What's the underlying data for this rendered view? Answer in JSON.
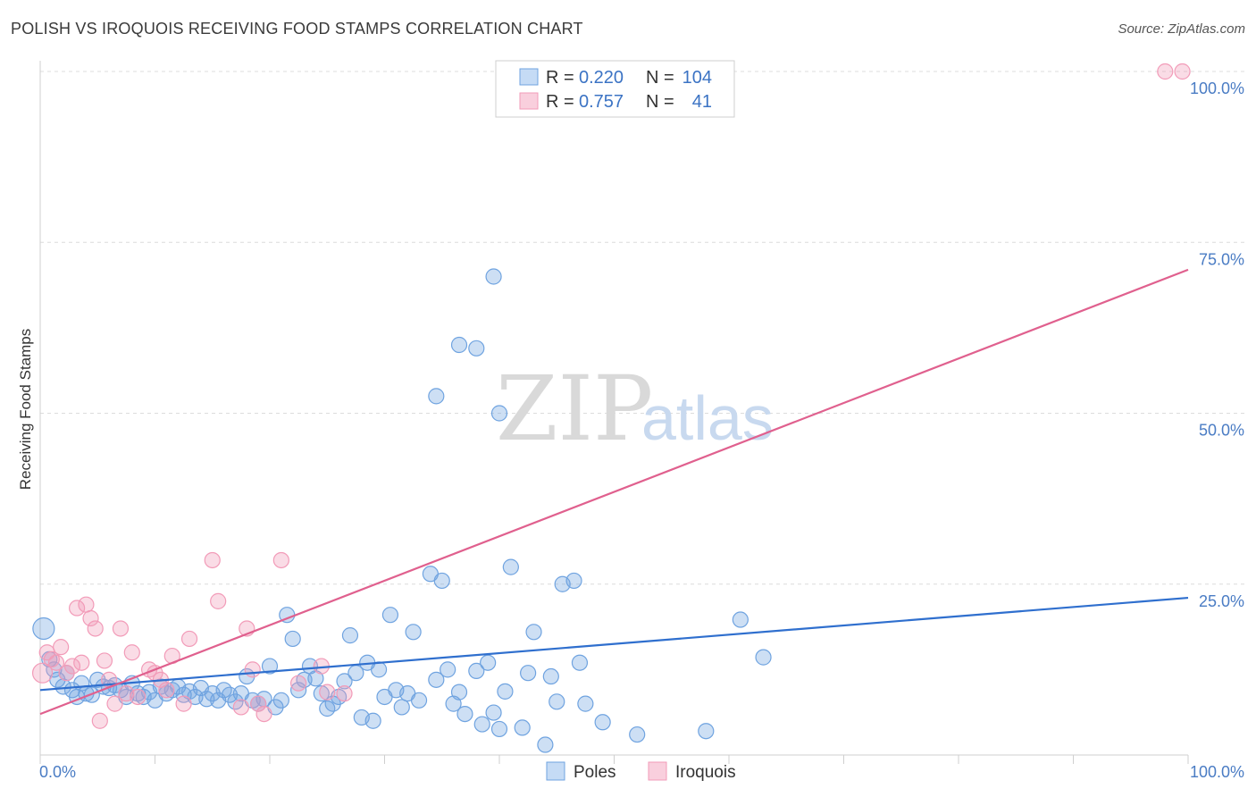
{
  "chart_data": {
    "type": "scatter",
    "title": "POLISH VS IROQUOIS RECEIVING FOOD STAMPS CORRELATION CHART",
    "source": "Source: ZipAtlas.com",
    "ylabel": "Receiving Food Stamps",
    "xlabel": "",
    "xlim": [
      0,
      100
    ],
    "ylim": [
      0,
      100
    ],
    "x_tick_labels": [
      "0.0%",
      "100.0%"
    ],
    "y_ticks": [
      25,
      50,
      75,
      100
    ],
    "y_tick_labels": [
      "25.0%",
      "50.0%",
      "75.0%",
      "100.0%"
    ],
    "grid": true,
    "watermark": {
      "zip": "ZIP",
      "atlas": "atlas"
    },
    "legend_position": "top-center",
    "stats": [
      {
        "r_label": "R =",
        "r_value": "0.220",
        "n_label": "N =",
        "n_value": "104"
      },
      {
        "r_label": "R =",
        "r_value": "0.757",
        "n_label": "N =",
        "n_value": "41"
      }
    ],
    "series": [
      {
        "name": "Poles",
        "color": "#6fa3e0",
        "line_color": "#2f6fce",
        "trend": {
          "x": [
            0,
            100
          ],
          "y": [
            9.5,
            23.0
          ]
        },
        "points": [
          [
            0.3,
            18.5
          ],
          [
            0.8,
            14.0
          ],
          [
            1.2,
            12.5
          ],
          [
            1.5,
            11.0
          ],
          [
            2.0,
            10.0
          ],
          [
            2.3,
            12.0
          ],
          [
            2.8,
            9.5
          ],
          [
            3.2,
            8.5
          ],
          [
            3.6,
            10.5
          ],
          [
            4.0,
            9.0
          ],
          [
            4.5,
            8.8
          ],
          [
            5.0,
            11.0
          ],
          [
            5.5,
            10.0
          ],
          [
            6.0,
            9.8
          ],
          [
            6.5,
            10.2
          ],
          [
            7.0,
            9.5
          ],
          [
            7.5,
            8.5
          ],
          [
            8.0,
            10.5
          ],
          [
            8.5,
            9.0
          ],
          [
            9.0,
            8.5
          ],
          [
            9.5,
            9.2
          ],
          [
            10.0,
            8.0
          ],
          [
            10.5,
            10.0
          ],
          [
            11.0,
            9.0
          ],
          [
            11.5,
            9.5
          ],
          [
            12.0,
            10.0
          ],
          [
            12.5,
            8.8
          ],
          [
            13.0,
            9.3
          ],
          [
            13.5,
            8.5
          ],
          [
            14.0,
            9.8
          ],
          [
            14.5,
            8.2
          ],
          [
            15.0,
            9.0
          ],
          [
            15.5,
            8.0
          ],
          [
            16.0,
            9.5
          ],
          [
            16.5,
            8.8
          ],
          [
            17.0,
            7.8
          ],
          [
            17.5,
            9.0
          ],
          [
            18.0,
            11.5
          ],
          [
            18.5,
            8.0
          ],
          [
            19.0,
            7.5
          ],
          [
            19.5,
            8.2
          ],
          [
            20.0,
            13.0
          ],
          [
            20.5,
            7.0
          ],
          [
            21.0,
            8.0
          ],
          [
            21.5,
            20.5
          ],
          [
            22.0,
            17.0
          ],
          [
            22.5,
            9.5
          ],
          [
            23.0,
            11.0
          ],
          [
            23.5,
            13.0
          ],
          [
            24.0,
            11.2
          ],
          [
            24.5,
            9.0
          ],
          [
            25.0,
            6.8
          ],
          [
            25.5,
            7.5
          ],
          [
            26.0,
            8.5
          ],
          [
            26.5,
            10.8
          ],
          [
            27.0,
            17.5
          ],
          [
            27.5,
            12.0
          ],
          [
            28.0,
            5.5
          ],
          [
            28.5,
            13.5
          ],
          [
            29.0,
            5.0
          ],
          [
            29.5,
            12.5
          ],
          [
            30.0,
            8.5
          ],
          [
            30.5,
            20.5
          ],
          [
            31.0,
            9.5
          ],
          [
            31.5,
            7.0
          ],
          [
            32.0,
            9.0
          ],
          [
            32.5,
            18.0
          ],
          [
            33.0,
            8.0
          ],
          [
            34.0,
            26.5
          ],
          [
            34.5,
            11.0
          ],
          [
            35.0,
            25.5
          ],
          [
            35.5,
            12.5
          ],
          [
            36.0,
            7.5
          ],
          [
            36.5,
            9.2
          ],
          [
            37.0,
            6.0
          ],
          [
            38.0,
            12.3
          ],
          [
            38.5,
            4.5
          ],
          [
            39.0,
            13.5
          ],
          [
            39.5,
            6.2
          ],
          [
            40.0,
            3.8
          ],
          [
            40.5,
            9.3
          ],
          [
            41.0,
            27.5
          ],
          [
            42.0,
            4.0
          ],
          [
            42.5,
            12.0
          ],
          [
            43.0,
            18.0
          ],
          [
            44.0,
            1.5
          ],
          [
            44.5,
            11.5
          ],
          [
            45.0,
            7.8
          ],
          [
            45.5,
            25.0
          ],
          [
            46.5,
            25.5
          ],
          [
            47.0,
            13.5
          ],
          [
            47.5,
            7.5
          ],
          [
            49.0,
            4.8
          ],
          [
            52.0,
            3.0
          ],
          [
            58.0,
            3.5
          ],
          [
            61.0,
            19.8
          ],
          [
            63.0,
            14.3
          ],
          [
            34.5,
            52.5
          ],
          [
            36.5,
            60.0
          ],
          [
            38.0,
            59.5
          ],
          [
            39.5,
            70.0
          ],
          [
            40.0,
            50.0
          ]
        ]
      },
      {
        "name": "Iroquois",
        "color": "#f29bb8",
        "line_color": "#e0608e",
        "trend": {
          "x": [
            0,
            100
          ],
          "y": [
            6.0,
            71.0
          ]
        },
        "points": [
          [
            0.2,
            12.0
          ],
          [
            0.6,
            15.0
          ],
          [
            1.0,
            14.0
          ],
          [
            1.4,
            13.5
          ],
          [
            1.8,
            15.8
          ],
          [
            2.3,
            12.0
          ],
          [
            2.8,
            13.0
          ],
          [
            3.2,
            21.5
          ],
          [
            3.6,
            13.5
          ],
          [
            4.0,
            22.0
          ],
          [
            4.4,
            20.0
          ],
          [
            4.8,
            18.5
          ],
          [
            5.2,
            5.0
          ],
          [
            5.6,
            13.8
          ],
          [
            6.0,
            11.0
          ],
          [
            6.5,
            7.5
          ],
          [
            7.0,
            18.5
          ],
          [
            7.5,
            9.0
          ],
          [
            8.0,
            15.0
          ],
          [
            8.5,
            8.5
          ],
          [
            9.5,
            12.5
          ],
          [
            10.0,
            12.0
          ],
          [
            10.5,
            11.0
          ],
          [
            11.0,
            9.5
          ],
          [
            11.5,
            14.5
          ],
          [
            12.5,
            7.5
          ],
          [
            13.0,
            17.0
          ],
          [
            15.0,
            28.5
          ],
          [
            15.5,
            22.5
          ],
          [
            17.5,
            7.0
          ],
          [
            18.0,
            18.5
          ],
          [
            18.5,
            12.5
          ],
          [
            19.0,
            7.5
          ],
          [
            19.5,
            6.0
          ],
          [
            21.0,
            28.5
          ],
          [
            22.5,
            10.5
          ],
          [
            24.5,
            13.0
          ],
          [
            25.0,
            9.2
          ],
          [
            26.5,
            9.0
          ],
          [
            98.0,
            100.0
          ],
          [
            99.5,
            100.0
          ]
        ]
      }
    ]
  }
}
